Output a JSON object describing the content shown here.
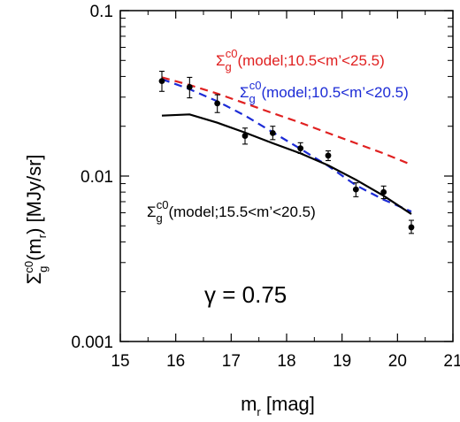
{
  "chart_data": {
    "type": "line",
    "xlabel": {
      "main": "m",
      "sub": "r",
      "rest": " [mag]"
    },
    "ylabel": {
      "pre": "Σ",
      "sub": "g",
      "sup": "c0",
      "mid": "(m",
      "sub2": "r",
      "rest": ") [MJy/sr]"
    },
    "xlim": [
      15,
      21
    ],
    "ylim": [
      0.001,
      0.1
    ],
    "yscale": "log",
    "x_ticks": [
      "15",
      "16",
      "17",
      "18",
      "19",
      "20",
      "21"
    ],
    "y_ticks": [
      "0.001",
      "0.01",
      "0.1"
    ],
    "grid": false,
    "series": [
      {
        "style": "points-with-errorbars",
        "color": "#000000",
        "x": [
          15.75,
          16.25,
          16.75,
          17.25,
          17.75,
          18.25,
          18.75,
          19.25,
          19.75,
          20.25
        ],
        "y": [
          0.0375,
          0.0345,
          0.0275,
          0.0175,
          0.0182,
          0.0147,
          0.0133,
          0.0083,
          0.008,
          0.0049
        ],
        "err_lo": [
          0.0325,
          0.0297,
          0.0242,
          0.0156,
          0.0166,
          0.0137,
          0.0124,
          0.0075,
          0.0073,
          0.0045
        ],
        "err_hi": [
          0.043,
          0.0395,
          0.031,
          0.0195,
          0.02,
          0.0159,
          0.0142,
          0.0091,
          0.0087,
          0.0054
        ]
      },
      {
        "style": "dashed",
        "color": "#e02020",
        "x": [
          15.75,
          16.25,
          16.75,
          17.25,
          17.75,
          18.25,
          18.75,
          19.25,
          19.75,
          20.25
        ],
        "y": [
          0.0395,
          0.0355,
          0.0315,
          0.0275,
          0.024,
          0.021,
          0.0182,
          0.0158,
          0.0137,
          0.0117
        ]
      },
      {
        "style": "dashed",
        "color": "#1c2bd6",
        "x": [
          15.75,
          16.25,
          16.75,
          17.25,
          17.75,
          18.25,
          18.75,
          19.25,
          19.75,
          20.25
        ],
        "y": [
          0.0385,
          0.0335,
          0.0283,
          0.0232,
          0.0184,
          0.0146,
          0.0115,
          0.0088,
          0.0072,
          0.0061
        ]
      },
      {
        "style": "solid",
        "color": "#000000",
        "x": [
          15.75,
          16.25,
          16.75,
          17.25,
          17.75,
          18.25,
          18.75,
          19.25,
          19.75,
          20.25
        ],
        "y": [
          0.0232,
          0.0236,
          0.021,
          0.0183,
          0.0158,
          0.0137,
          0.0116,
          0.0095,
          0.0076,
          0.0059
        ]
      }
    ],
    "annotations": [
      {
        "name": "red-model-label",
        "color": "#e02020",
        "pre": "Σ",
        "sub": "g",
        "sup": "c0",
        "rest": "(model;10.5<m’<25.5)"
      },
      {
        "name": "blue-model-label",
        "color": "#1c2bd6",
        "pre": "Σ",
        "sub": "g",
        "sup": "c0",
        "rest": "(model;10.5<m’<20.5)"
      },
      {
        "name": "black-model-label",
        "color": "#000000",
        "pre": "Σ",
        "sub": "g",
        "sup": "c0",
        "rest": "(model;15.5<m’<20.5)"
      }
    ],
    "gamma_label": "γ = 0.75"
  }
}
